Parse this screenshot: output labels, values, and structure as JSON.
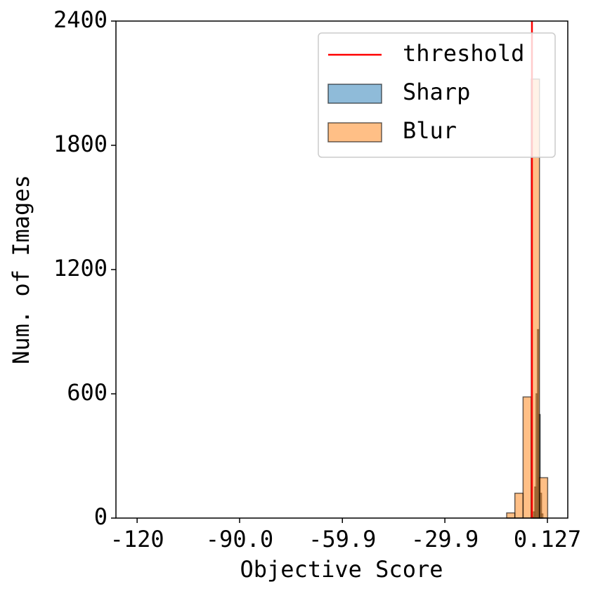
{
  "chart_data": {
    "type": "histogram",
    "xlabel": "Objective Score",
    "ylabel": "Num. of Images",
    "xlim": [
      -126.2,
      6.09
    ],
    "xticks": [
      -120,
      {
        "value": -90,
        "label": "-90.0"
      },
      -59.9,
      -29.9,
      0.127
    ],
    "ylim": [
      0,
      2400
    ],
    "yticks": [
      0,
      600,
      1200,
      1800,
      2400
    ],
    "threshold": {
      "name": "threshold",
      "value": -4.4,
      "color": "#ff0000"
    },
    "legend": "upper right",
    "series": [
      {
        "name": "Sharp",
        "color": "#1f77b4",
        "bins": [
          -4.4,
          -4.0,
          -3.6,
          -3.2,
          -2.8,
          -2.4,
          -2.0,
          -1.6,
          -1.2
        ],
        "values": [
          5,
          30,
          150,
          600,
          910,
          500,
          120,
          20
        ]
      },
      {
        "name": "Blur",
        "color": "#ff7f0e",
        "bins": [
          -11.8,
          -9.4,
          -7.0,
          -4.6,
          -2.2,
          0.2
        ],
        "values": [
          25,
          120,
          585,
          2120,
          195
        ]
      }
    ]
  }
}
